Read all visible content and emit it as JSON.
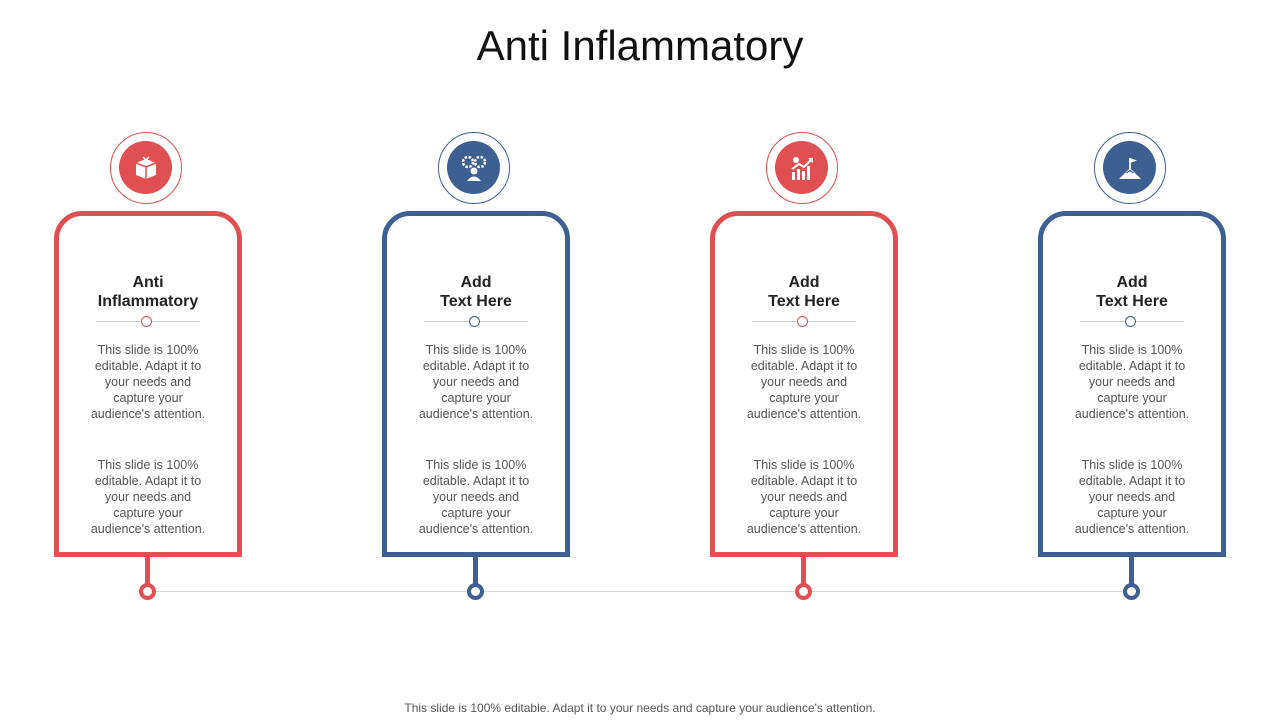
{
  "title": "Anti Inflammatory",
  "colors": {
    "red": "#e05052",
    "blue": "#3e5f91"
  },
  "cards": [
    {
      "title_line1": "Anti",
      "title_line2": "Inflammatory",
      "icon": "box-icon",
      "color": "red",
      "para1": "This slide is 100% editable. Adapt it to your needs and capture your audience's attention.",
      "para2": "This slide is 100% editable. Adapt it to your needs and capture your audience's attention."
    },
    {
      "title_line1": "Add",
      "title_line2": "Text Here",
      "icon": "gears-person-icon",
      "color": "blue",
      "para1": "This slide is 100% editable. Adapt it to your needs and capture your audience's attention.",
      "para2": "This slide is 100% editable. Adapt it to your needs and capture your audience's attention."
    },
    {
      "title_line1": "Add",
      "title_line2": "Text Here",
      "icon": "growth-chart-icon",
      "color": "red",
      "para1": "This slide is 100% editable. Adapt it to your needs and capture your audience's attention.",
      "para2": "This slide is 100% editable. Adapt it to your needs and capture your audience's attention."
    },
    {
      "title_line1": "Add",
      "title_line2": "Text Here",
      "icon": "mountain-flag-icon",
      "color": "blue",
      "para1": "This slide is 100% editable. Adapt it to your needs and capture your audience's attention.",
      "para2": "This slide is 100% editable. Adapt it to your needs and capture your audience's attention."
    }
  ],
  "footer": "This slide is 100% editable. Adapt it to your needs and capture your audience's attention."
}
